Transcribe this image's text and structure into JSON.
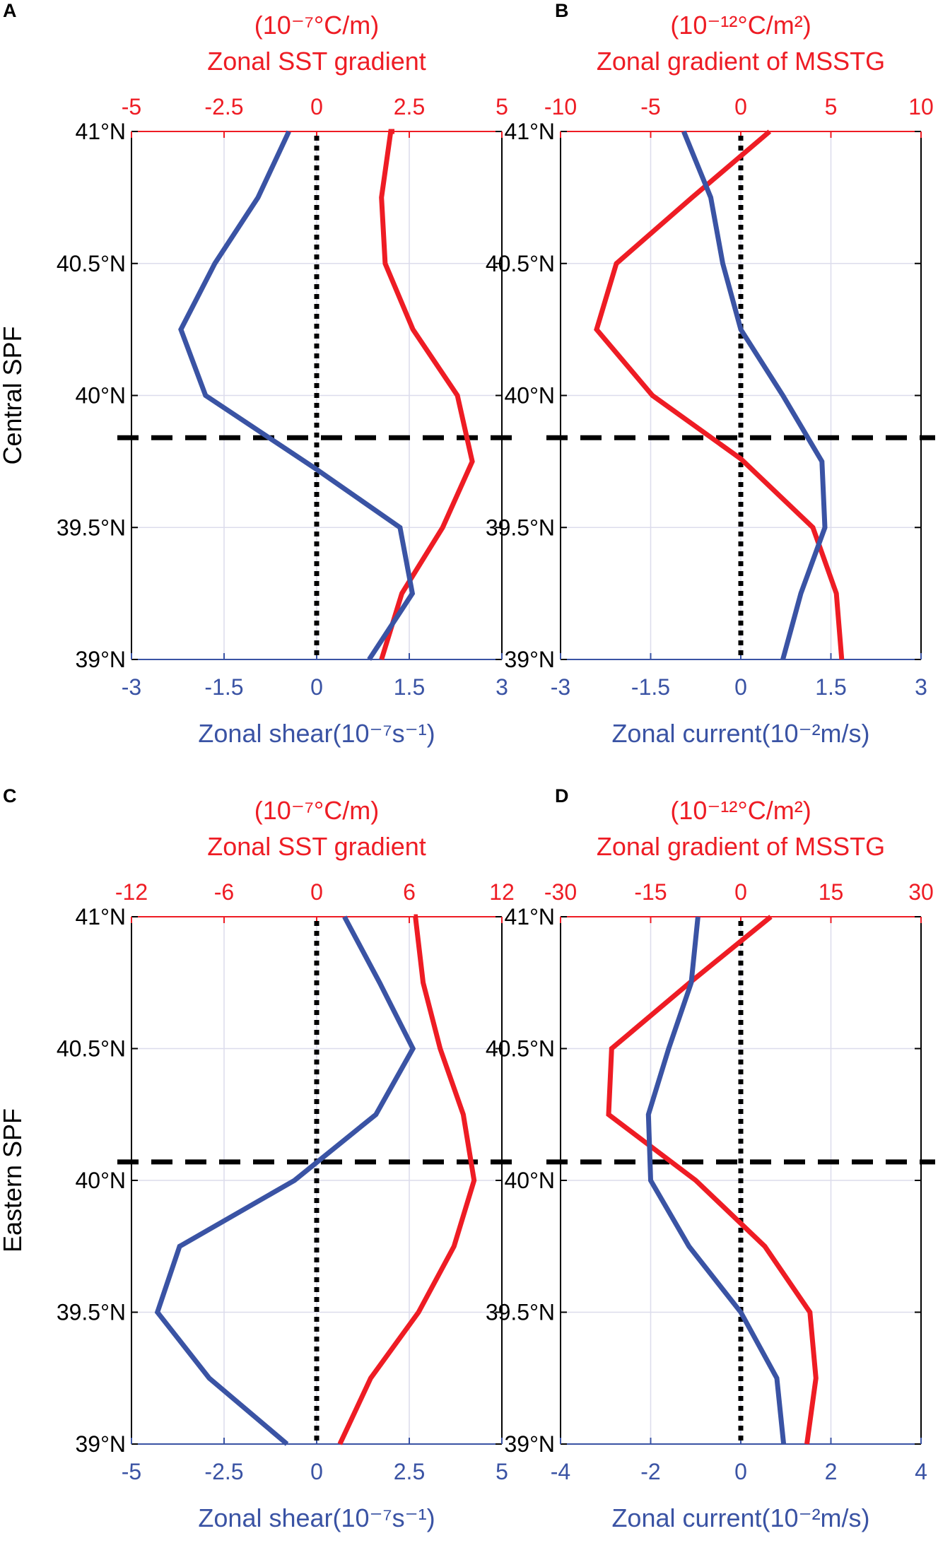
{
  "colors": {
    "red": "#ee1c24",
    "blue": "#3a53a4",
    "black": "#000000",
    "grid": "#dcdcec"
  },
  "chart_data": [
    {
      "panel": "A",
      "type": "line",
      "ylabel": "Central SPF",
      "y_ticks": [
        "39°N",
        "39.5°N",
        "40°N",
        "40.5°N",
        "41°N"
      ],
      "ylim": [
        39,
        41
      ],
      "red_axis": {
        "unit": "(10⁻⁷°C/m)",
        "label": "Zonal SST gradient",
        "lim": [
          -5,
          5
        ],
        "ticks": [
          "-5",
          "-2.5",
          "0",
          "2.5",
          "5"
        ]
      },
      "blue_axis": {
        "label": "Zonal shear(10⁻⁷s⁻¹)",
        "lim": [
          -3,
          3
        ],
        "ticks": [
          "-3",
          "-1.5",
          "0",
          "1.5",
          "3"
        ]
      },
      "hline_y": 39.84,
      "series": [
        {
          "color": "red",
          "axis": "red",
          "x": [
            1.75,
            2.3,
            3.4,
            4.2,
            3.8,
            2.6,
            1.85,
            1.75,
            2.0,
            2.1
          ],
          "y": [
            39,
            39.25,
            39.5,
            39.75,
            40,
            40.25,
            40.5,
            40.75,
            41,
            41
          ]
        },
        {
          "color": "blue",
          "axis": "blue",
          "x": [
            0.85,
            1.55,
            1.35,
            0,
            -1.8,
            -2.2,
            -1.65,
            -0.95,
            -0.45
          ],
          "y": [
            39,
            39.25,
            39.5,
            39.72,
            40,
            40.25,
            40.5,
            40.75,
            41
          ]
        }
      ]
    },
    {
      "panel": "B",
      "type": "line",
      "ylabel": "",
      "y_ticks": [
        "39°N",
        "39.5°N",
        "40°N",
        "40.5°N",
        "41°N"
      ],
      "ylim": [
        39,
        41
      ],
      "red_axis": {
        "unit": "(10⁻¹²°C/m²)",
        "label": "Zonal gradient of MSSTG",
        "lim": [
          -10,
          10
        ],
        "ticks": [
          "-10",
          "-5",
          "0",
          "5",
          "10"
        ]
      },
      "blue_axis": {
        "label": "Zonal current(10⁻²m/s)",
        "lim": [
          -3,
          3
        ],
        "ticks": [
          "-3",
          "-1.5",
          "0",
          "1.5",
          "3"
        ]
      },
      "hline_y": 39.84,
      "series": [
        {
          "color": "red",
          "axis": "red",
          "x": [
            5.6,
            5.3,
            4.0,
            0,
            -4.9,
            -8.0,
            -6.9,
            -2.7,
            1.6
          ],
          "y": [
            39,
            39.25,
            39.5,
            39.76,
            40,
            40.25,
            40.5,
            40.75,
            41
          ]
        },
        {
          "color": "blue",
          "axis": "blue",
          "x": [
            0.7,
            1.0,
            1.4,
            1.35,
            0.7,
            0,
            -0.3,
            -0.5,
            -0.95
          ],
          "y": [
            39,
            39.25,
            39.5,
            39.75,
            40,
            40.25,
            40.5,
            40.75,
            41
          ]
        }
      ]
    },
    {
      "panel": "C",
      "type": "line",
      "ylabel": "Eastern SPF",
      "y_ticks": [
        "39°N",
        "39.5°N",
        "40°N",
        "40.5°N",
        "41°N"
      ],
      "ylim": [
        39,
        41
      ],
      "red_axis": {
        "unit": "(10⁻⁷°C/m)",
        "label": "Zonal SST gradient",
        "lim": [
          -12,
          12
        ],
        "ticks": [
          "-12",
          "-6",
          "0",
          "6",
          "12"
        ]
      },
      "blue_axis": {
        "label": "Zonal shear(10⁻⁷s⁻¹)",
        "lim": [
          -5,
          5
        ],
        "ticks": [
          "-5",
          "-2.5",
          "0",
          "2.5",
          "5"
        ]
      },
      "hline_y": 40.07,
      "series": [
        {
          "color": "red",
          "axis": "red",
          "x": [
            1.5,
            3.5,
            6.6,
            8.9,
            10.2,
            9.5,
            8.0,
            6.9,
            6.4,
            6.3
          ],
          "y": [
            39,
            39.25,
            39.5,
            39.75,
            40,
            40.25,
            40.5,
            40.75,
            41,
            41
          ]
        },
        {
          "color": "blue",
          "axis": "blue",
          "x": [
            -0.8,
            -2.9,
            -4.3,
            -3.7,
            -0.6,
            1.6,
            2.6,
            1.7,
            0.75
          ],
          "y": [
            39,
            39.25,
            39.5,
            39.75,
            40,
            40.25,
            40.5,
            40.75,
            41
          ]
        }
      ]
    },
    {
      "panel": "D",
      "type": "line",
      "ylabel": "",
      "y_ticks": [
        "39°N",
        "39.5°N",
        "40°N",
        "40.5°N",
        "41°N"
      ],
      "ylim": [
        39,
        41
      ],
      "red_axis": {
        "unit": "(10⁻¹²°C/m²)",
        "label": "Zonal gradient of MSSTG",
        "lim": [
          -30,
          30
        ],
        "ticks": [
          "-30",
          "-15",
          "0",
          "15",
          "30"
        ]
      },
      "blue_axis": {
        "label": "Zonal current(10⁻²m/s)",
        "lim": [
          -4,
          4
        ],
        "ticks": [
          "-4",
          "-2",
          "0",
          "2",
          "4"
        ]
      },
      "hline_y": 40.07,
      "series": [
        {
          "color": "red",
          "axis": "red",
          "x": [
            11.0,
            12.5,
            11.5,
            4.0,
            -7.5,
            -22.0,
            -21.5,
            -8.5,
            5.0
          ],
          "y": [
            39,
            39.25,
            39.5,
            39.75,
            40,
            40.25,
            40.5,
            40.75,
            41
          ]
        },
        {
          "color": "blue",
          "axis": "blue",
          "x": [
            0.95,
            0.8,
            0,
            -1.15,
            -2.0,
            -2.05,
            -1.6,
            -1.1,
            -0.95
          ],
          "y": [
            39,
            39.25,
            39.5,
            39.75,
            40,
            40.25,
            40.5,
            40.75,
            41
          ]
        }
      ]
    }
  ]
}
